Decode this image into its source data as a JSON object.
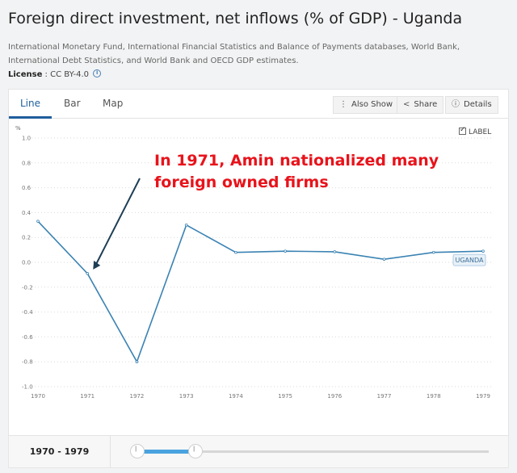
{
  "header": {
    "title": "Foreign direct investment, net inflows (% of GDP) - Uganda",
    "source": "International Monetary Fund, International Financial Statistics and Balance of Payments databases, World Bank, International Debt Statistics, and World Bank and OECD GDP estimates.",
    "license_label": "License",
    "license_sep": " : ",
    "license_value": "CC BY-4.0"
  },
  "tabs": [
    {
      "label": "Line",
      "active": true
    },
    {
      "label": "Bar",
      "active": false
    },
    {
      "label": "Map",
      "active": false
    }
  ],
  "toolbar": {
    "also_show": "Also Show",
    "share": "Share",
    "details": "Details"
  },
  "label_toggle": {
    "text": "LABEL",
    "checked": true
  },
  "annotation": {
    "line1": "In 1971, Amin nationalized many",
    "line2": "foreign owned firms"
  },
  "chart_data": {
    "type": "line",
    "title": "",
    "unit_label": "%",
    "x": [
      1970,
      1971,
      1972,
      1973,
      1974,
      1975,
      1976,
      1977,
      1978,
      1979
    ],
    "series": [
      {
        "name": "UGANDA",
        "values": [
          0.33,
          -0.09,
          -0.8,
          0.3,
          0.08,
          0.09,
          0.085,
          0.025,
          0.08,
          0.09
        ]
      }
    ],
    "ylim": [
      -1.0,
      1.0
    ],
    "yticks": [
      "1.0",
      "0.8",
      "0.6",
      "0.4",
      "0.2",
      "0.0",
      "-0.2",
      "-0.4",
      "-0.6",
      "-0.8",
      "-1.0"
    ],
    "grid": true,
    "line_color": "#3b83b3"
  },
  "footer": {
    "range_label": "1970 - 1979",
    "range_start": 1970,
    "range_end": 1979
  }
}
